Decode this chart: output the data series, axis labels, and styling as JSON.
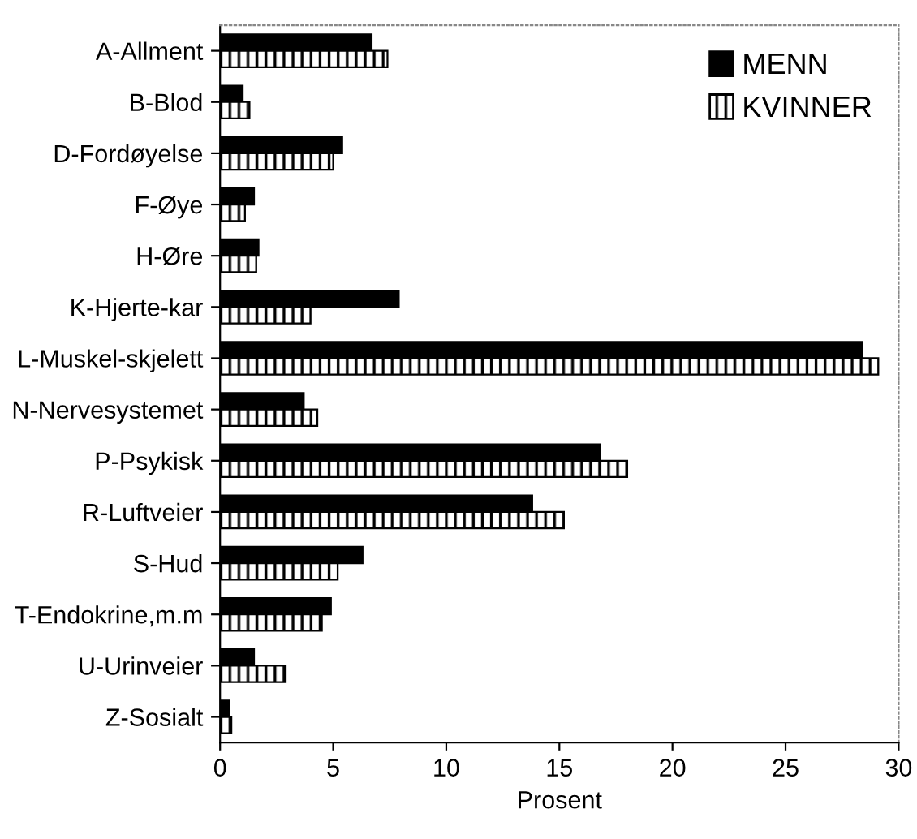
{
  "chart_data": {
    "type": "bar",
    "orientation": "horizontal",
    "xlabel": "Prosent",
    "categories": [
      "A-Allment",
      "B-Blod",
      "D-Fordøyelse",
      "F-Øye",
      "H-Øre",
      "K-Hjerte-kar",
      "L-Muskel-skjelett",
      "N-Nervesystemet",
      "P-Psykisk",
      "R-Luftveier",
      "S-Hud",
      "T-Endokrine,m.m",
      "U-Urinveier",
      "Z-Sosialt"
    ],
    "series": [
      {
        "name": "MENN",
        "color": "#000000",
        "values": [
          6.7,
          1.0,
          5.4,
          1.5,
          1.7,
          7.9,
          28.4,
          3.7,
          16.8,
          13.8,
          6.3,
          4.9,
          1.5,
          0.4
        ]
      },
      {
        "name": "KVINNER",
        "color": "#000000",
        "values": [
          7.4,
          1.3,
          5.0,
          1.1,
          1.6,
          4.0,
          29.1,
          4.3,
          18.0,
          15.2,
          5.2,
          4.5,
          2.9,
          0.5
        ]
      }
    ],
    "xlim": [
      0,
      30
    ],
    "xticks": [
      0,
      5,
      10,
      15,
      20,
      25,
      30
    ],
    "grid": false,
    "legend": "top right"
  }
}
